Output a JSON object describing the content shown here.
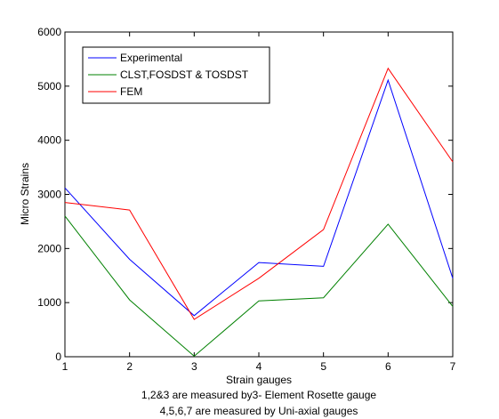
{
  "chart_data": {
    "type": "line",
    "title": "",
    "xlabel": "Strain gauges",
    "ylabel": "Micro Strains",
    "notes": [
      "1,2&3 are measured by3- Element Rosette gauge",
      "4,5,6,7 are measured by Uni-axial gauges"
    ],
    "x": [
      1,
      2,
      3,
      4,
      5,
      6,
      7
    ],
    "xlim": [
      1,
      7
    ],
    "ylim": [
      0,
      6000
    ],
    "xticks": [
      1,
      2,
      3,
      4,
      5,
      6,
      7
    ],
    "yticks": [
      0,
      1000,
      2000,
      3000,
      4000,
      5000,
      6000
    ],
    "grid": false,
    "legend_position": "top-left",
    "series": [
      {
        "name": "Experimental",
        "color": "#0000ff",
        "values": [
          3120,
          1800,
          760,
          1740,
          1670,
          5110,
          1450
        ]
      },
      {
        "name": "CLST,FOSDST & TOSDST",
        "color": "#008000",
        "values": [
          2600,
          1050,
          10,
          1030,
          1090,
          2450,
          930
        ]
      },
      {
        "name": "FEM",
        "color": "#ff0000",
        "values": [
          2850,
          2710,
          690,
          1450,
          2350,
          5330,
          3600
        ]
      }
    ]
  }
}
